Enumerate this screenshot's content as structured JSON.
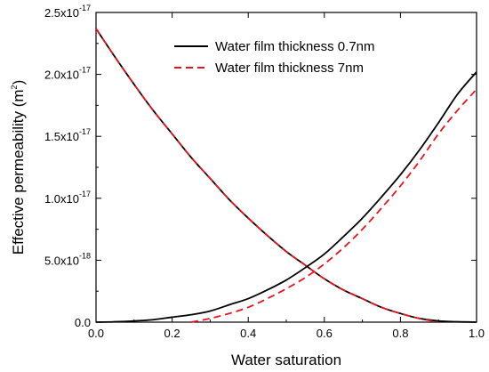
{
  "chart_data": {
    "type": "line",
    "xlabel": "Water saturation",
    "ylabel": "Effective permeability (m",
    "ylabel_sup": "2",
    "ylabel_end": ")",
    "xlim": [
      0,
      1
    ],
    "ylim": [
      0,
      2.5e-17
    ],
    "grid": false,
    "legend_position": "top-center",
    "x_ticks": [
      {
        "value": 0.0,
        "label": "0.0"
      },
      {
        "value": 0.2,
        "label": "0.2"
      },
      {
        "value": 0.4,
        "label": "0.4"
      },
      {
        "value": 0.6,
        "label": "0.6"
      },
      {
        "value": 0.8,
        "label": "0.8"
      },
      {
        "value": 1.0,
        "label": "1.0"
      }
    ],
    "y_ticks": [
      {
        "value": 0,
        "base": "0.0",
        "exp": ""
      },
      {
        "value": 5e-18,
        "base": "5.0x10",
        "exp": "-18"
      },
      {
        "value": 1e-17,
        "base": "1.0x10",
        "exp": "-17"
      },
      {
        "value": 1.5e-17,
        "base": "1.5x10",
        "exp": "-17"
      },
      {
        "value": 2e-17,
        "base": "2.0x10",
        "exp": "-17"
      },
      {
        "value": 2.5e-17,
        "base": "2.5x10",
        "exp": "-17"
      }
    ],
    "series": [
      {
        "name": "Water film thickness 0.7nm",
        "color": "#000000",
        "style": "solid",
        "segments": [
          {
            "x": [
              0.0,
              0.05,
              0.1,
              0.15,
              0.2,
              0.25,
              0.3,
              0.35,
              0.4,
              0.45,
              0.5,
              0.55,
              0.6,
              0.65,
              0.7,
              0.75,
              0.8,
              0.85,
              0.9,
              0.95,
              1.0
            ],
            "y": [
              2.37e-17,
              2.14e-17,
              1.92e-17,
              1.71e-17,
              1.52e-17,
              1.33e-17,
              1.16e-17,
              9.9e-18,
              8.4e-18,
              7e-18,
              5.7e-18,
              4.6e-18,
              3.5e-18,
              2.6e-18,
              1.9e-18,
              1.2e-18,
              7e-19,
              3e-19,
              1e-19,
              3e-20,
              0
            ]
          },
          {
            "x": [
              0.0,
              0.05,
              0.1,
              0.15,
              0.2,
              0.25,
              0.3,
              0.35,
              0.4,
              0.45,
              0.5,
              0.55,
              0.6,
              0.65,
              0.7,
              0.75,
              0.8,
              0.85,
              0.9,
              0.95,
              1.0
            ],
            "y": [
              0,
              3e-20,
              1e-19,
              2e-19,
              4e-19,
              6e-19,
              9e-19,
              1.4e-18,
              1.9e-18,
              2.6e-18,
              3.4e-18,
              4.4e-18,
              5.5e-18,
              6.9e-18,
              8.4e-18,
              1.01e-17,
              1.19e-17,
              1.39e-17,
              1.61e-17,
              1.84e-17,
              2.02e-17
            ]
          }
        ]
      },
      {
        "name": "Water film thickness 7nm",
        "color": "#e8141b",
        "style": "dashed",
        "segments": [
          {
            "x": [
              0.0,
              0.05,
              0.1,
              0.15,
              0.2,
              0.25,
              0.3,
              0.35,
              0.4,
              0.45,
              0.5,
              0.55,
              0.6,
              0.65,
              0.7,
              0.75,
              0.8,
              0.85,
              0.9
            ],
            "y": [
              2.37e-17,
              2.14e-17,
              1.92e-17,
              1.71e-17,
              1.52e-17,
              1.33e-17,
              1.16e-17,
              9.9e-18,
              8.4e-18,
              7e-18,
              5.7e-18,
              4.6e-18,
              3.5e-18,
              2.6e-18,
              1.9e-18,
              1.2e-18,
              7e-19,
              3e-19,
              0
            ]
          },
          {
            "x": [
              0.25,
              0.3,
              0.35,
              0.4,
              0.45,
              0.5,
              0.55,
              0.6,
              0.65,
              0.7,
              0.75,
              0.8,
              0.85,
              0.9,
              0.95,
              1.0
            ],
            "y": [
              0,
              3e-19,
              7e-19,
              1.2e-18,
              1.9e-18,
              2.7e-18,
              3.6e-18,
              4.7e-18,
              6e-18,
              7.5e-18,
              9.2e-18,
              1.1e-17,
              1.3e-17,
              1.52e-17,
              1.71e-17,
              1.88e-17
            ]
          }
        ]
      }
    ]
  }
}
